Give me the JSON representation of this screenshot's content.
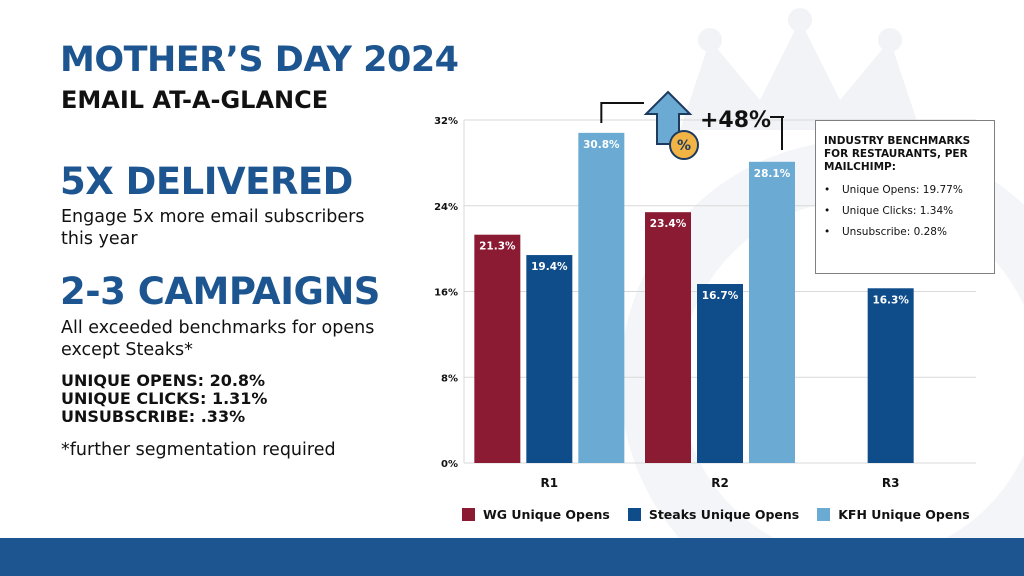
{
  "title": "MOTHER’S DAY 2024",
  "subtitle": "EMAIL AT-A-GLANCE",
  "stats": [
    {
      "heading": "5X DELIVERED",
      "body": "Engage 5x more email subscribers this year"
    },
    {
      "heading": "2-3 CAMPAIGNS",
      "body": "All exceeded benchmarks for opens except Steaks*"
    }
  ],
  "metrics": [
    "UNIQUE OPENS: 20.8%",
    "UNIQUE CLICKS: 1.31%",
    "UNSUBSCRIBE: .33%"
  ],
  "footnote": "*further segmentation required",
  "benchmarks": {
    "title": "INDUSTRY BENCHMARKS FOR RESTAURANTS, PER MAILCHIMP:",
    "items": [
      "Unique Opens: 19.77%",
      "Unique Clicks: 1.34%",
      "Unsubscribe: 0.28%"
    ]
  },
  "callout": {
    "text": "+48%",
    "icon": "percent-up-arrow-icon"
  },
  "colors": {
    "brand_blue": "#1d5590",
    "wg": "#8b1a33",
    "steaks": "#0f4c8a",
    "kfh": "#6aaad3"
  },
  "chart_data": {
    "type": "bar",
    "categories": [
      "R1",
      "R2",
      "R3"
    ],
    "series": [
      {
        "name": "WG Unique Opens",
        "values": [
          21.3,
          23.4,
          null
        ],
        "labels": [
          "21.3%",
          "23.4%",
          ""
        ]
      },
      {
        "name": "Steaks Unique Opens",
        "values": [
          19.4,
          16.7,
          16.3
        ],
        "labels": [
          "19.4%",
          "16.7%",
          "16.3%"
        ]
      },
      {
        "name": "KFH Unique Opens",
        "values": [
          30.8,
          28.1,
          null
        ],
        "labels": [
          "30.8%",
          "28.1%",
          ""
        ]
      }
    ],
    "ylim": [
      0,
      32
    ],
    "yticks": [
      0,
      8,
      16,
      24,
      32
    ],
    "ytick_labels": [
      "0%",
      "8%",
      "16%",
      "24%",
      "32%"
    ],
    "grid": true,
    "legend": "bottom"
  }
}
